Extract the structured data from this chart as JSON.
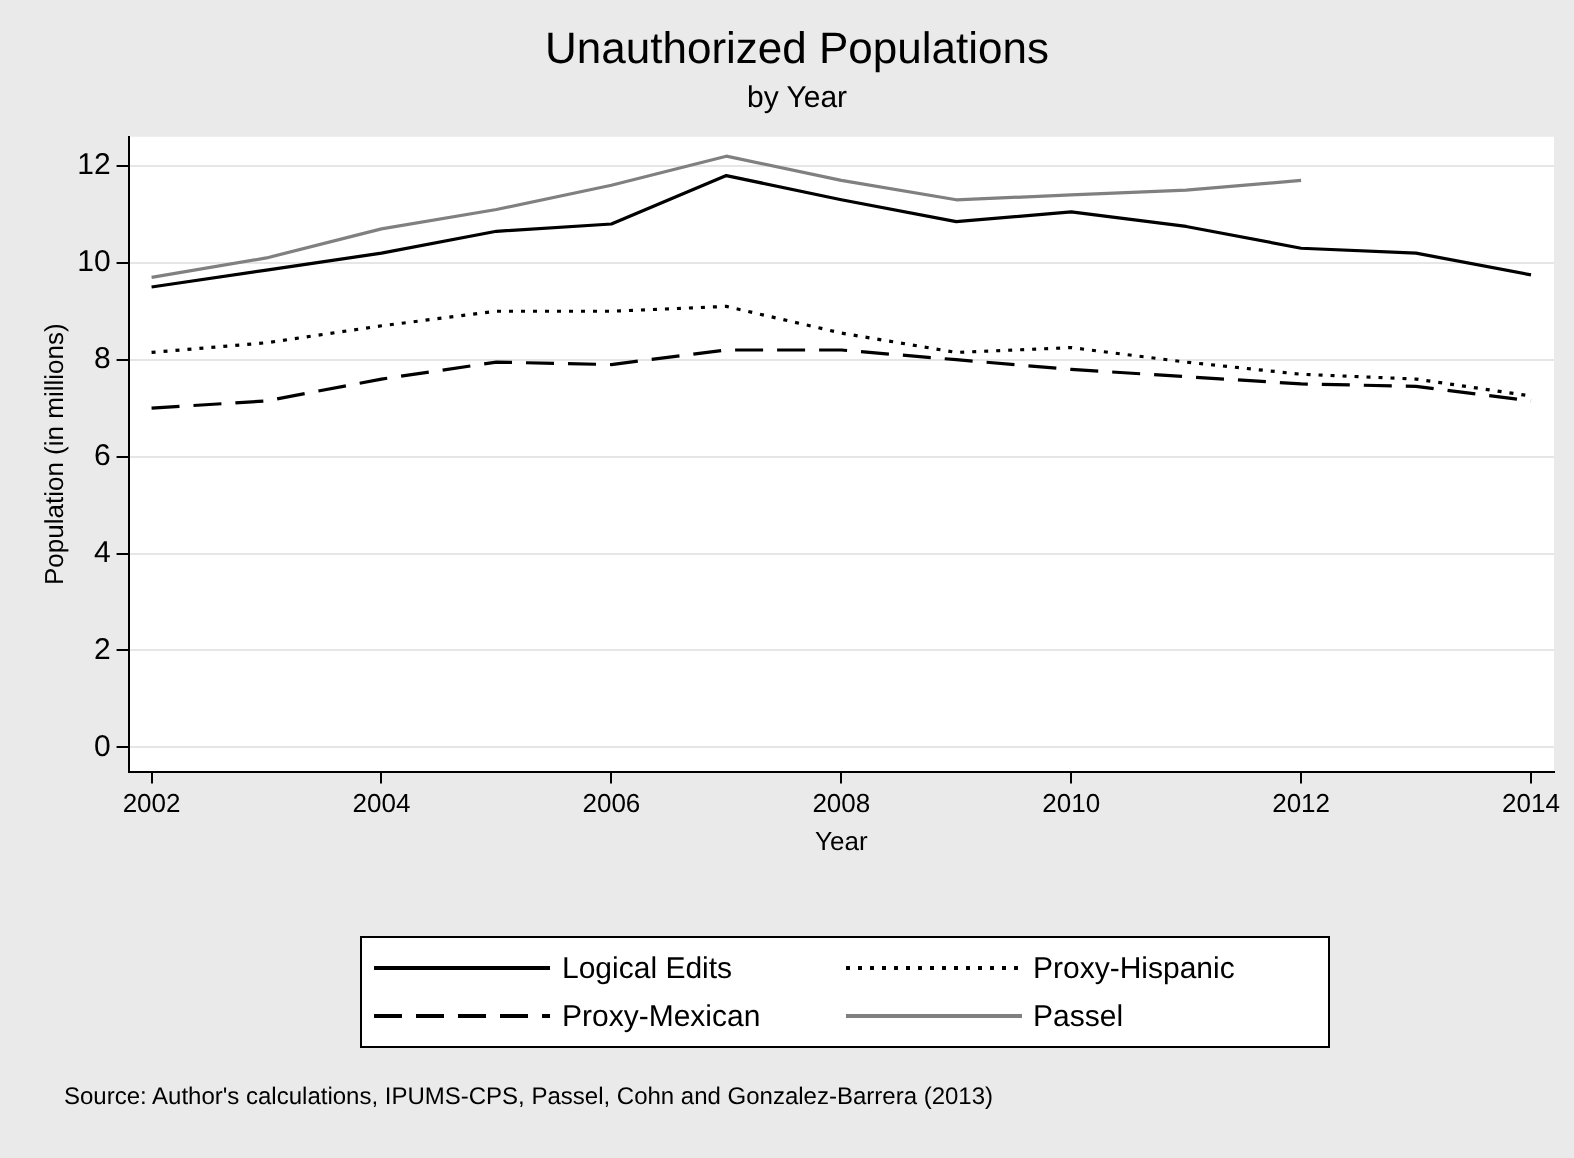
{
  "chart_data": {
    "type": "line",
    "title": "Unauthorized Populations",
    "subtitle": "by Year",
    "xlabel": "Year",
    "ylabel": "Population (in millions)",
    "x": [
      2002,
      2003,
      2004,
      2005,
      2006,
      2007,
      2008,
      2009,
      2010,
      2011,
      2012,
      2013,
      2014
    ],
    "series": [
      {
        "name": "Logical Edits",
        "color": "#000000",
        "line_style": "solid",
        "values": [
          9.5,
          9.85,
          10.2,
          10.65,
          10.8,
          11.8,
          11.3,
          10.85,
          11.05,
          10.75,
          10.3,
          10.2,
          9.75
        ]
      },
      {
        "name": "Proxy-Hispanic",
        "color": "#000000",
        "line_style": "dotted",
        "values": [
          8.15,
          8.35,
          8.7,
          9.0,
          9.0,
          9.1,
          8.55,
          8.15,
          8.25,
          7.95,
          7.7,
          7.6,
          7.25
        ]
      },
      {
        "name": "Proxy-Mexican",
        "color": "#000000",
        "line_style": "dashed",
        "values": [
          7.0,
          7.15,
          7.6,
          7.95,
          7.9,
          8.2,
          8.2,
          8.0,
          7.8,
          7.65,
          7.5,
          7.45,
          7.15
        ]
      },
      {
        "name": "Passel",
        "color": "#808080",
        "line_style": "solid",
        "values": [
          9.7,
          10.1,
          10.7,
          11.1,
          11.6,
          12.2,
          11.7,
          11.3,
          11.4,
          11.5,
          11.7,
          null,
          null
        ]
      }
    ],
    "xlim": [
      2001.8,
      2014.2
    ],
    "xticks": [
      2002,
      2004,
      2006,
      2008,
      2010,
      2012,
      2014
    ],
    "ylim": [
      -0.5,
      12.6
    ],
    "yticks": [
      0,
      2,
      4,
      6,
      8,
      10,
      12
    ],
    "grid": "y",
    "legend": "bottom",
    "marker": "none",
    "annotations": [
      "Source: Author's calculations, IPUMS-CPS, Passel, Cohn and Gonzalez-Barrera (2013)"
    ]
  }
}
